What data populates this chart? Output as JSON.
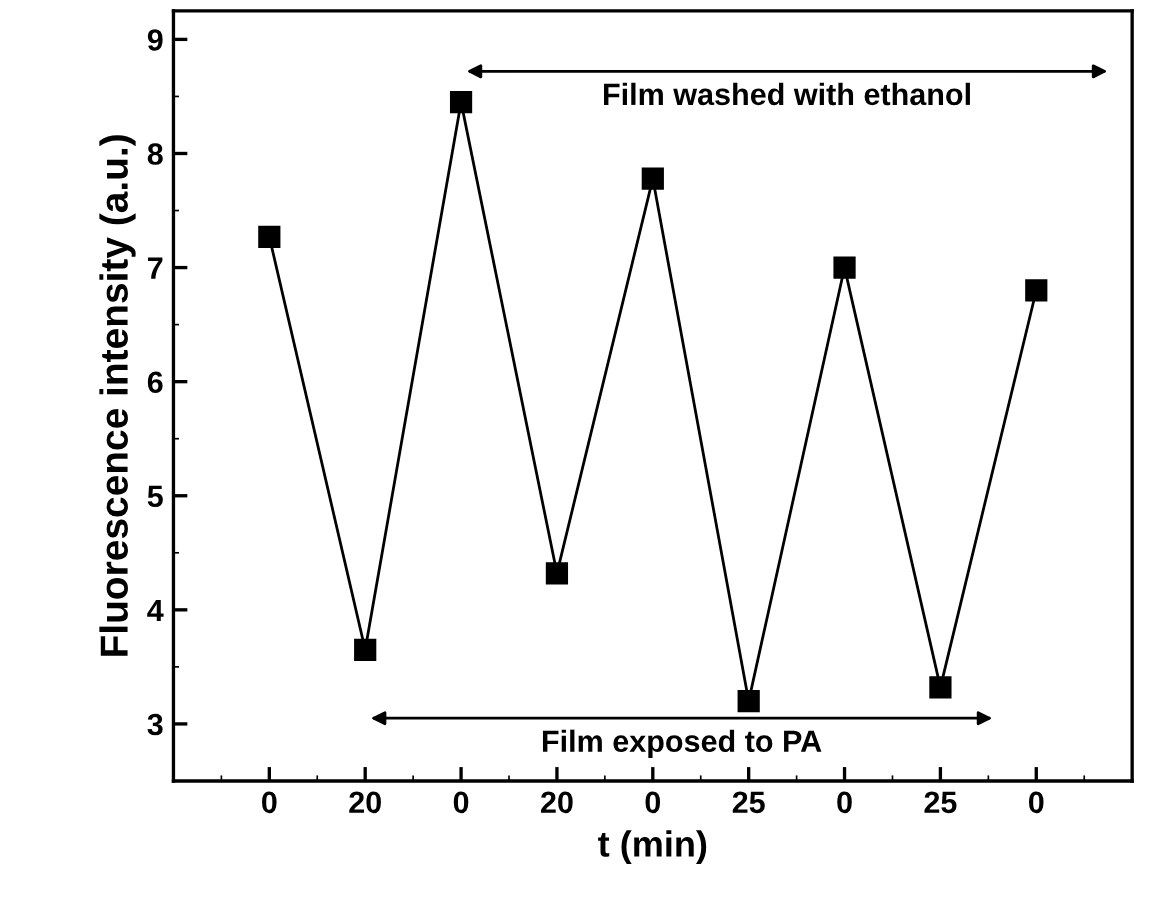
{
  "chart_data": {
    "type": "line",
    "xlabel": "t (min)",
    "ylabel": "Fluorescence intensity (a.u.)",
    "categories": [
      "0",
      "20",
      "0",
      "20",
      "0",
      "25",
      "0",
      "25",
      "0"
    ],
    "series": [
      {
        "color": "#000000",
        "values": [
          7.27,
          3.65,
          8.45,
          4.32,
          7.78,
          3.2,
          7.0,
          3.32,
          6.8
        ]
      }
    ],
    "ylim": [
      2.5,
      9.25
    ],
    "yticks": [
      3,
      4,
      5,
      6,
      7,
      8,
      9
    ],
    "marker": "square",
    "line_style": "solid",
    "grid": false,
    "legend": false,
    "annotations": [
      "Film washed with ethanol",
      "Film exposed to PA"
    ]
  }
}
